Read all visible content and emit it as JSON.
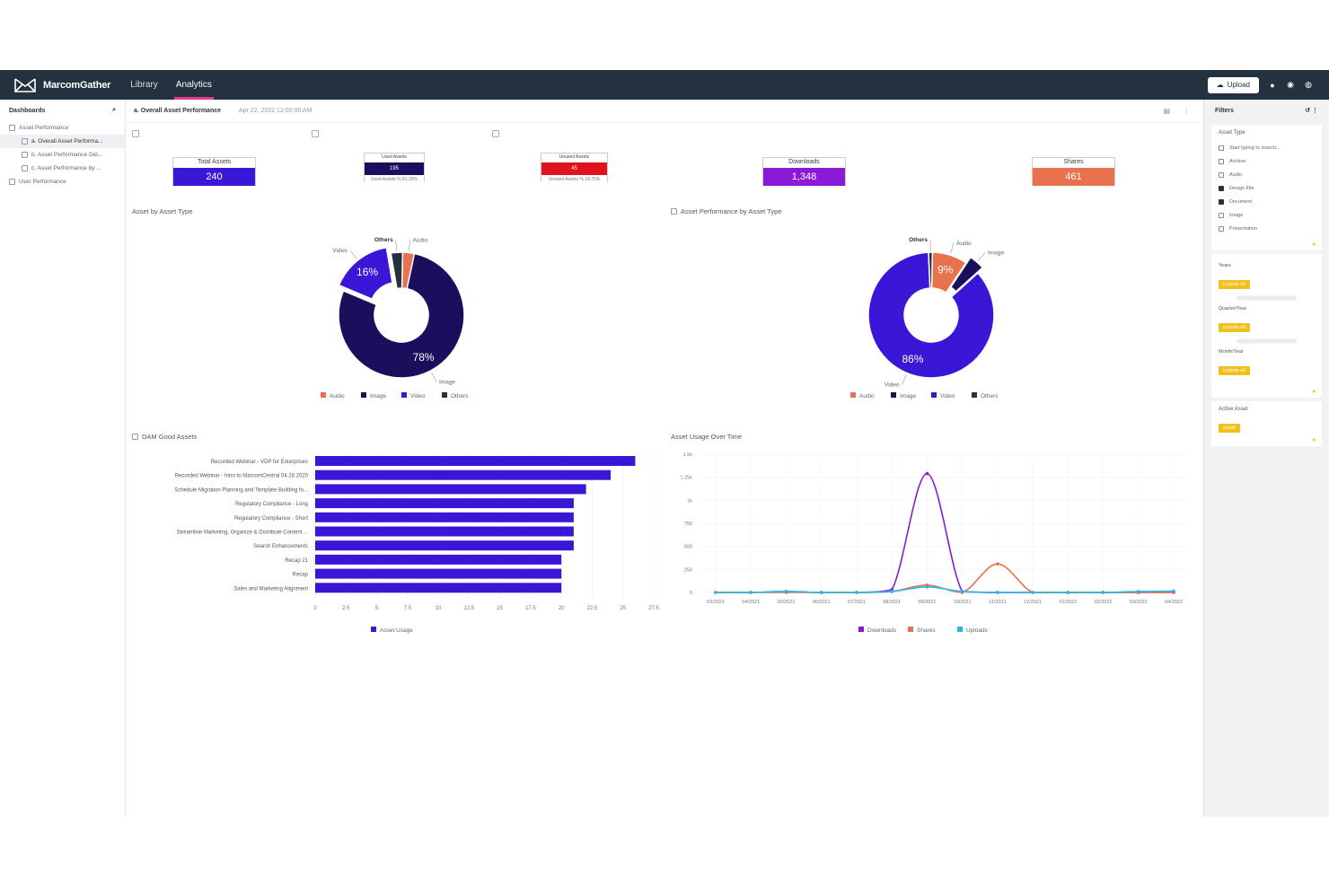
{
  "topbar": {
    "brand": "MarcomGather",
    "nav": [
      "Library",
      "Analytics"
    ],
    "upload_label": "Upload"
  },
  "sidebar": {
    "title": "Dashboards",
    "items": [
      {
        "label": "Asset Performance"
      },
      {
        "label": "a. Overall Asset Performa..."
      },
      {
        "label": "b. Asset Performance Det..."
      },
      {
        "label": "c. Asset Performance by ..."
      },
      {
        "label": "User Performance"
      }
    ]
  },
  "header": {
    "title": "a. Overall Asset Performance",
    "date": "Apr 22, 2022 12:00:00 AM"
  },
  "kpis": {
    "total_assets": {
      "label": "Total Assets",
      "value": "240",
      "color": "#3a16d6"
    },
    "used_assets": {
      "label": "Used Assets",
      "value": "195",
      "sub": "Used Assets % 81.25%",
      "color": "#1a0f5c"
    },
    "unused_assets": {
      "label": "Unused Assets",
      "value": "45",
      "sub": "Unused Assets % 18.75%",
      "color": "#e0121e"
    },
    "downloads": {
      "label": "Downloads",
      "value": "1,348",
      "color": "#8a1ad6"
    },
    "shares": {
      "label": "Shares",
      "value": "461",
      "color": "#e8714e"
    }
  },
  "sections": {
    "asset_by_type": "Asset by Asset Type",
    "perf_by_type": "Asset Performance by Asset Type",
    "dam_good_assets": "DAM Good Assets",
    "usage_over_time": "Asset Usage Over Time"
  },
  "colors": {
    "audio": "#e8714e",
    "image": "#1a0f5c",
    "video": "#3a16d6",
    "others": "#243240",
    "downloads": "#8a1ad6",
    "shares": "#e8714e",
    "uploads": "#27b8e0"
  },
  "chart_data": [
    {
      "type": "pie",
      "title": "Asset by Asset Type",
      "labels": [
        "Audio",
        "Image",
        "Video",
        "Others"
      ],
      "values": [
        3,
        78,
        16,
        3
      ],
      "slice_labels": [
        "",
        "78%",
        "16%",
        ""
      ],
      "outer_labels": [
        "Audio",
        "Image",
        "Video",
        "Others"
      ],
      "legend": [
        "Audio",
        "Image",
        "Video",
        "Others"
      ]
    },
    {
      "type": "pie",
      "title": "Asset Performance by Asset Type",
      "labels": [
        "Audio",
        "Image",
        "Video",
        "Others"
      ],
      "values": [
        9,
        4,
        86,
        1
      ],
      "slice_labels": [
        "9%",
        "",
        "86%",
        ""
      ],
      "outer_labels": [
        "Audio",
        "Image",
        "Video",
        "Others"
      ],
      "legend": [
        "Audio",
        "Image",
        "Video",
        "Others"
      ]
    },
    {
      "type": "bar",
      "title": "DAM Good Assets",
      "orientation": "horizontal",
      "categories": [
        "Recorded Webinar - VDP for Enterprises",
        "Recorded Webinar - Intro to MarcomCentral 04.28.2020",
        "Schedule Migration Planning and Template Building fo...",
        "Regulatory Compliance - Long",
        "Regulatory Compliance - Short",
        "Streamline Marketing, Organize & Distribute Content ...",
        "Search Enhancements",
        "Recap 21",
        "Recap",
        "Sales and Marketing Alignment"
      ],
      "values": [
        26,
        24,
        22,
        21,
        21,
        21,
        21,
        20,
        20,
        20
      ],
      "xticks": [
        "0",
        "2.5",
        "5",
        "7.5",
        "10",
        "12.5",
        "15",
        "17.5",
        "20",
        "22.5",
        "25",
        "27.5"
      ],
      "xlim": [
        0,
        27.5
      ],
      "legend": [
        "Asset Usage"
      ]
    },
    {
      "type": "line",
      "title": "Asset Usage Over Time",
      "x": [
        "03/2021",
        "04/2021",
        "05/2021",
        "06/2021",
        "07/2021",
        "08/2021",
        "09/2021",
        "10/2021",
        "11/2021",
        "12/2021",
        "01/2022",
        "02/2022",
        "03/2022",
        "04/2022"
      ],
      "yticks": [
        "0",
        "250",
        "500",
        "750",
        "1k",
        "1.25k",
        "1.5k"
      ],
      "ylim": [
        0,
        1500
      ],
      "series": [
        {
          "name": "Downloads",
          "values": [
            0,
            0,
            10,
            0,
            0,
            30,
            1290,
            10,
            0,
            0,
            0,
            0,
            0,
            0
          ]
        },
        {
          "name": "Shares",
          "values": [
            0,
            0,
            0,
            0,
            0,
            10,
            80,
            0,
            310,
            0,
            0,
            0,
            0,
            0
          ]
        },
        {
          "name": "Uploads",
          "values": [
            0,
            0,
            10,
            0,
            0,
            10,
            60,
            10,
            0,
            0,
            0,
            0,
            10,
            15
          ]
        }
      ]
    }
  ],
  "filters": {
    "title": "Filters",
    "asset_type": {
      "title": "Asset Type",
      "search_placeholder": "Start typing to search...",
      "options": [
        {
          "label": "Archive",
          "checked": false
        },
        {
          "label": "Audio",
          "checked": false
        },
        {
          "label": "Design File",
          "checked": true
        },
        {
          "label": "Document",
          "checked": true
        },
        {
          "label": "Image",
          "checked": false
        },
        {
          "label": "Presentation",
          "checked": false
        }
      ]
    },
    "years": {
      "label": "Years",
      "chip": "Include all"
    },
    "quarters": {
      "label": "Quarter/Year",
      "chip": "Include all"
    },
    "months": {
      "label": "Month/Year",
      "chip": "Include all"
    },
    "active_asset": {
      "title": "Active Asset",
      "chip": "Small"
    }
  }
}
